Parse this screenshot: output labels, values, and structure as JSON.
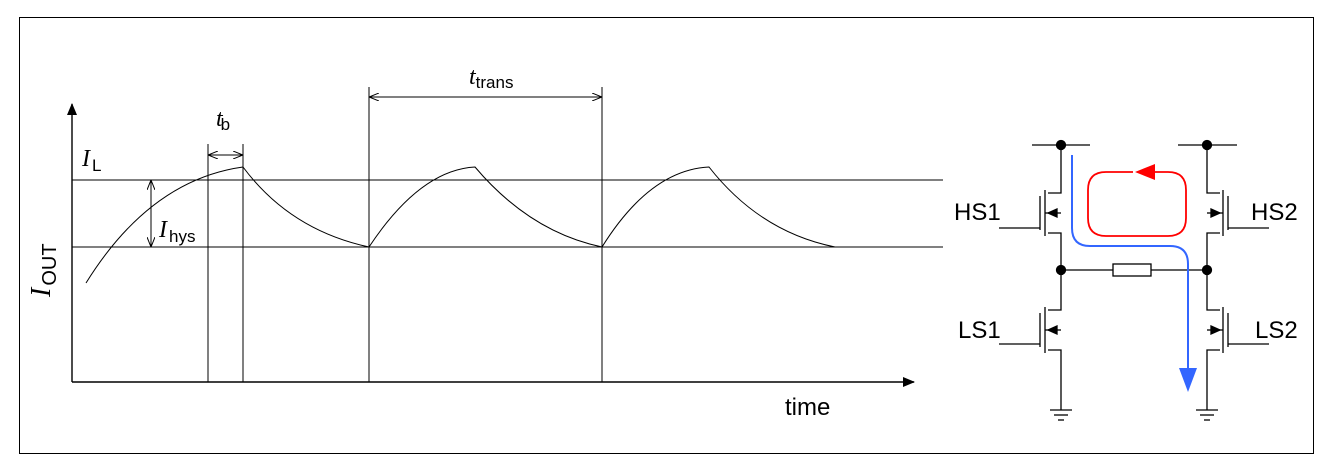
{
  "waveform": {
    "axis_y_label_main": "I",
    "axis_y_label_sub": "OUT",
    "axis_x_label": "time",
    "il_label_main": "I",
    "il_label_sub": "L",
    "ihys_label_main": "I",
    "ihys_label_sub": "hys",
    "tb_label_main": "t",
    "tb_label_sub": "b",
    "ttrans_label_main": "t",
    "ttrans_label_sub": "trans"
  },
  "circuit": {
    "hs1_label": "HS1",
    "hs2_label": "HS2",
    "ls1_label": "LS1",
    "ls2_label": "LS2",
    "colors": {
      "recirculation_loop": "#ff0000",
      "load_current_path": "#3366ff",
      "wiring": "#000000"
    }
  }
}
